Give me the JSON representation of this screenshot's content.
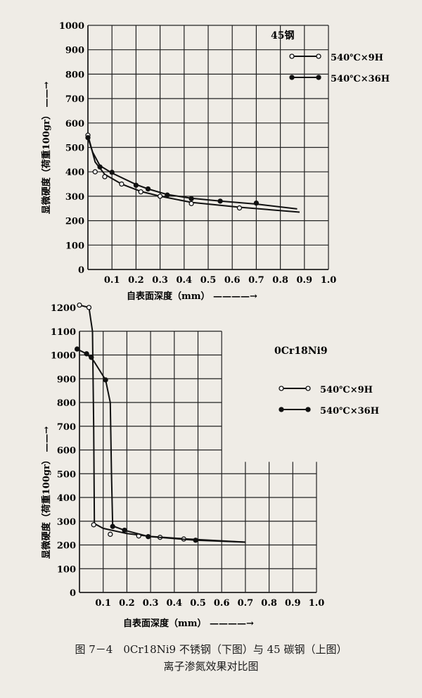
{
  "chart_data": [
    {
      "type": "line",
      "title": "45钢",
      "xlabel": "自表面深度（mm）",
      "ylabel": "显微硬度（荷重100gr）",
      "xlim": [
        0,
        1.0
      ],
      "ylim": [
        0,
        1000
      ],
      "xticks": [
        "0.1",
        "0.2",
        "0.3",
        "0.4",
        "0.5",
        "0.6",
        "0.7",
        "0.8",
        "0.9",
        "1.0"
      ],
      "yticks": [
        "0",
        "100",
        "200",
        "300",
        "400",
        "500",
        "600",
        "700",
        "800",
        "900",
        "1000"
      ],
      "grid": true,
      "legend": "top-right",
      "series": [
        {
          "name": "540℃×9H",
          "marker": "open-circle",
          "points": [
            [
              0,
              550
            ],
            [
              0.03,
              400
            ],
            [
              0.07,
              380
            ],
            [
              0.14,
              350
            ],
            [
              0.22,
              318
            ],
            [
              0.3,
              300
            ],
            [
              0.43,
              270
            ],
            [
              0.63,
              252
            ]
          ],
          "curve": [
            [
              0,
              550
            ],
            [
              0.03,
              440
            ],
            [
              0.07,
              390
            ],
            [
              0.14,
              350
            ],
            [
              0.22,
              320
            ],
            [
              0.3,
              300
            ],
            [
              0.43,
              275
            ],
            [
              0.63,
              255
            ],
            [
              0.88,
              235
            ]
          ]
        },
        {
          "name": "540℃×36H",
          "marker": "filled-circle",
          "points": [
            [
              0,
              540
            ],
            [
              0.05,
              420
            ],
            [
              0.1,
              398
            ],
            [
              0.2,
              345
            ],
            [
              0.25,
              330
            ],
            [
              0.33,
              305
            ],
            [
              0.43,
              290
            ],
            [
              0.55,
              280
            ],
            [
              0.7,
              272
            ]
          ],
          "curve": [
            [
              0,
              540
            ],
            [
              0.02,
              480
            ],
            [
              0.05,
              425
            ],
            [
              0.1,
              395
            ],
            [
              0.2,
              348
            ],
            [
              0.25,
              330
            ],
            [
              0.33,
              307
            ],
            [
              0.43,
              292
            ],
            [
              0.55,
              280
            ],
            [
              0.7,
              268
            ],
            [
              0.87,
              248
            ]
          ]
        }
      ]
    },
    {
      "type": "line",
      "title": "0Cr18Ni9",
      "xlabel": "自表面深度（mm）",
      "ylabel": "显微硬度（荷重100gr）",
      "xlim": [
        0,
        1.0
      ],
      "ylim": [
        0,
        1200
      ],
      "xticks": [
        "0.1",
        "0.2",
        "0.3",
        "0.4",
        "0.5",
        "0.6",
        "0.7",
        "0.8",
        "0.9",
        "1.0"
      ],
      "yticks": [
        "0",
        "100",
        "200",
        "300",
        "400",
        "500",
        "600",
        "700",
        "800",
        "900",
        "1000",
        "1100",
        "1200"
      ],
      "grid": true,
      "legend": "right",
      "series": [
        {
          "name": "540℃×9H",
          "marker": "open-circle",
          "points": [
            [
              0,
              1210
            ],
            [
              0.04,
              1200
            ],
            [
              0.06,
              285
            ],
            [
              0.13,
              245
            ],
            [
              0.25,
              238
            ],
            [
              0.34,
              232
            ],
            [
              0.44,
              225
            ]
          ],
          "curve": [
            [
              0,
              1210
            ],
            [
              0.04,
              1200
            ],
            [
              0.055,
              1100
            ],
            [
              0.06,
              700
            ],
            [
              0.063,
              290
            ],
            [
              0.1,
              270
            ],
            [
              0.2,
              248
            ],
            [
              0.3,
              236
            ],
            [
              0.44,
              226
            ],
            [
              0.7,
              212
            ]
          ]
        },
        {
          "name": "540℃×36H",
          "marker": "filled-circle",
          "points": [
            [
              -0.01,
              1025
            ],
            [
              0.03,
              1005
            ],
            [
              0.05,
              990
            ],
            [
              0.11,
              895
            ],
            [
              0.14,
              278
            ],
            [
              0.19,
              262
            ],
            [
              0.29,
              235
            ],
            [
              0.49,
              220
            ]
          ],
          "curve": [
            [
              -0.01,
              1025
            ],
            [
              0.03,
              1005
            ],
            [
              0.06,
              975
            ],
            [
              0.11,
              895
            ],
            [
              0.13,
              800
            ],
            [
              0.135,
              500
            ],
            [
              0.14,
              280
            ],
            [
              0.19,
              262
            ],
            [
              0.29,
              236
            ],
            [
              0.49,
              220
            ],
            [
              0.7,
              212
            ]
          ]
        }
      ]
    }
  ],
  "caption": {
    "line1": "图 7－4　0Cr18Ni9 不锈钢（下图）与 45 碳钢（上图）",
    "line2": "离子渗氮效果对比图"
  }
}
